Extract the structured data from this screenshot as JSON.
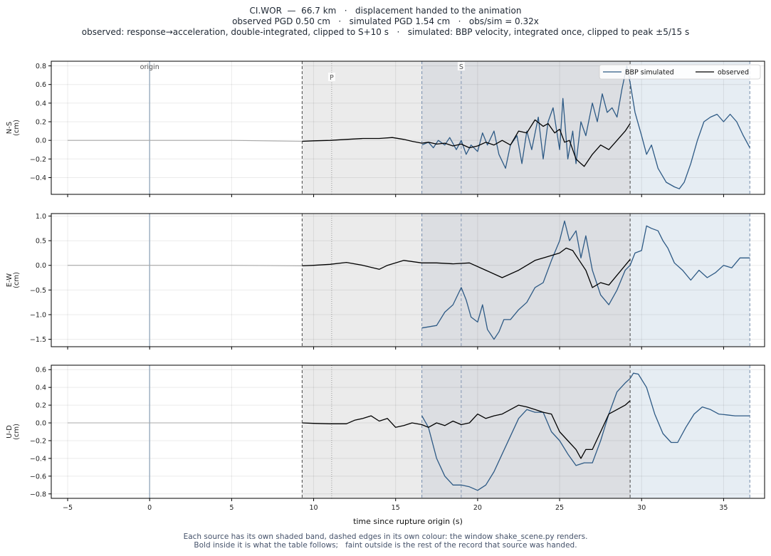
{
  "title_lines": [
    "CI.WOR  —  66.7 km   ·   displacement handed to the animation",
    "observed PGD 0.50 cm   ·   simulated PGD 1.54 cm   ·   obs/sim = 0.32x",
    "observed: response→acceleration, double-integrated, clipped to S+10 s   ·   simulated: BBP velocity, integrated once, clipped to peak ±5/15 s"
  ],
  "footnote_lines": [
    "Each source has its own shaded band, dashed edges in its own colour: the window shake_scene.py renders.",
    "Bold inside it is what the table follows;   faint outside is the rest of the record that source was handed."
  ],
  "colors": {
    "observed": "#000000",
    "simulated": "#2e5a85",
    "observed_faint": "#a8a8a8",
    "obs_band": "#ebebeb",
    "sim_band": "#e6edf3",
    "overlap_band": "#dcdee2",
    "obs_edge": "#555555",
    "sim_edge": "#7f95b2",
    "origin_line": "#9fb0c2",
    "p_line": "#999999",
    "s_line": "#8497b3"
  },
  "chart_data": {
    "type": "line",
    "xlabel": "time since rupture origin (s)",
    "xlim": [
      -6,
      37.5
    ],
    "xticks": [
      -5,
      0,
      5,
      10,
      15,
      20,
      25,
      30,
      35
    ],
    "grid": true,
    "legend": {
      "placement": "top-right",
      "entries": [
        "BBP simulated",
        "observed"
      ]
    },
    "markers": {
      "origin": 0,
      "P": 11.1,
      "S": 19.0,
      "origin_label": "origin",
      "p_label": "P",
      "s_label": "S"
    },
    "observed_window": [
      9.3,
      29.3
    ],
    "simulated_window": [
      16.6,
      36.6
    ],
    "panels": [
      {
        "ylabel": "N-S\n(cm)",
        "ylim": [
          -0.58,
          0.85
        ],
        "yticks": [
          -0.4,
          -0.2,
          0.0,
          0.2,
          0.4,
          0.6,
          0.8
        ],
        "observed_faint": [
          [
            -5,
            0.0
          ],
          [
            0,
            0.0
          ],
          [
            5,
            0.0
          ],
          [
            9.3,
            -0.01
          ]
        ],
        "observed": [
          [
            9.3,
            -0.01
          ],
          [
            10,
            -0.005
          ],
          [
            11,
            0.0
          ],
          [
            12,
            0.01
          ],
          [
            13,
            0.02
          ],
          [
            14,
            0.02
          ],
          [
            14.8,
            0.03
          ],
          [
            15.5,
            0.01
          ],
          [
            16,
            -0.01
          ],
          [
            16.6,
            -0.03
          ],
          [
            17,
            -0.02
          ],
          [
            17.5,
            -0.04
          ],
          [
            18,
            -0.03
          ],
          [
            18.5,
            -0.06
          ],
          [
            19,
            -0.04
          ],
          [
            19.5,
            -0.08
          ],
          [
            20,
            -0.06
          ],
          [
            20.5,
            -0.02
          ],
          [
            21,
            -0.05
          ],
          [
            21.5,
            0.0
          ],
          [
            22,
            -0.05
          ],
          [
            22.5,
            0.1
          ],
          [
            23,
            0.08
          ],
          [
            23.5,
            0.22
          ],
          [
            24,
            0.15
          ],
          [
            24.3,
            0.18
          ],
          [
            24.7,
            0.08
          ],
          [
            25,
            0.12
          ],
          [
            25.3,
            -0.02
          ],
          [
            25.6,
            0.0
          ],
          [
            26,
            -0.2
          ],
          [
            26.3,
            -0.25
          ],
          [
            26.5,
            -0.28
          ],
          [
            27,
            -0.15
          ],
          [
            27.5,
            -0.05
          ],
          [
            28,
            -0.1
          ],
          [
            28.5,
            0.0
          ],
          [
            29,
            0.1
          ],
          [
            29.3,
            0.18
          ]
        ],
        "simulated": [
          [
            16.6,
            -0.05
          ],
          [
            17,
            -0.02
          ],
          [
            17.3,
            -0.08
          ],
          [
            17.6,
            0.0
          ],
          [
            18,
            -0.05
          ],
          [
            18.3,
            0.03
          ],
          [
            18.7,
            -0.1
          ],
          [
            19,
            0.0
          ],
          [
            19.3,
            -0.15
          ],
          [
            19.6,
            -0.05
          ],
          [
            20,
            -0.12
          ],
          [
            20.3,
            0.08
          ],
          [
            20.6,
            -0.05
          ],
          [
            21,
            0.1
          ],
          [
            21.3,
            -0.15
          ],
          [
            21.7,
            -0.3
          ],
          [
            22,
            -0.05
          ],
          [
            22.4,
            0.05
          ],
          [
            22.7,
            -0.25
          ],
          [
            23,
            0.1
          ],
          [
            23.3,
            -0.1
          ],
          [
            23.7,
            0.25
          ],
          [
            24,
            -0.2
          ],
          [
            24.3,
            0.2
          ],
          [
            24.6,
            0.35
          ],
          [
            25,
            -0.1
          ],
          [
            25.2,
            0.45
          ],
          [
            25.5,
            -0.2
          ],
          [
            25.8,
            0.1
          ],
          [
            26,
            -0.25
          ],
          [
            26.3,
            0.2
          ],
          [
            26.6,
            0.05
          ],
          [
            27,
            0.4
          ],
          [
            27.3,
            0.2
          ],
          [
            27.6,
            0.5
          ],
          [
            27.9,
            0.3
          ],
          [
            28.2,
            0.35
          ],
          [
            28.5,
            0.25
          ],
          [
            28.8,
            0.55
          ],
          [
            29.1,
            0.8
          ],
          [
            29.3,
            0.62
          ],
          [
            29.6,
            0.3
          ],
          [
            30,
            0.05
          ],
          [
            30.3,
            -0.15
          ],
          [
            30.6,
            -0.05
          ],
          [
            31,
            -0.3
          ],
          [
            31.5,
            -0.45
          ],
          [
            32,
            -0.5
          ],
          [
            32.3,
            -0.52
          ],
          [
            32.6,
            -0.45
          ],
          [
            33,
            -0.25
          ],
          [
            33.4,
            0.0
          ],
          [
            33.8,
            0.2
          ],
          [
            34.2,
            0.25
          ],
          [
            34.6,
            0.28
          ],
          [
            35,
            0.2
          ],
          [
            35.4,
            0.28
          ],
          [
            35.8,
            0.2
          ],
          [
            36.2,
            0.05
          ],
          [
            36.6,
            -0.08
          ]
        ]
      },
      {
        "ylabel": "E-W\n(cm)",
        "ylim": [
          -1.65,
          1.05
        ],
        "yticks": [
          -1.5,
          -1.0,
          -0.5,
          0.0,
          0.5,
          1.0
        ],
        "observed_faint": [
          [
            -5,
            0.0
          ],
          [
            0,
            0.0
          ],
          [
            5,
            0.0
          ],
          [
            9.3,
            -0.01
          ]
        ],
        "observed": [
          [
            9.3,
            -0.01
          ],
          [
            10,
            0.0
          ],
          [
            11,
            0.02
          ],
          [
            12,
            0.06
          ],
          [
            13,
            0.0
          ],
          [
            14,
            -0.08
          ],
          [
            14.5,
            0.0
          ],
          [
            15.5,
            0.1
          ],
          [
            16.6,
            0.05
          ],
          [
            17.5,
            0.05
          ],
          [
            18.5,
            0.03
          ],
          [
            19.5,
            0.05
          ],
          [
            20.5,
            -0.1
          ],
          [
            21.5,
            -0.25
          ],
          [
            22.5,
            -0.1
          ],
          [
            23.5,
            0.1
          ],
          [
            24.5,
            0.2
          ],
          [
            25,
            0.25
          ],
          [
            25.4,
            0.35
          ],
          [
            25.8,
            0.3
          ],
          [
            26.2,
            0.1
          ],
          [
            26.6,
            -0.1
          ],
          [
            27,
            -0.45
          ],
          [
            27.5,
            -0.35
          ],
          [
            28,
            -0.4
          ],
          [
            28.5,
            -0.2
          ],
          [
            29,
            0.0
          ],
          [
            29.3,
            0.12
          ]
        ],
        "simulated": [
          [
            16.6,
            -1.27
          ],
          [
            17.5,
            -1.22
          ],
          [
            18,
            -0.95
          ],
          [
            18.5,
            -0.8
          ],
          [
            19,
            -0.45
          ],
          [
            19.3,
            -0.7
          ],
          [
            19.6,
            -1.05
          ],
          [
            20,
            -1.15
          ],
          [
            20.3,
            -0.8
          ],
          [
            20.6,
            -1.3
          ],
          [
            21,
            -1.5
          ],
          [
            21.3,
            -1.35
          ],
          [
            21.6,
            -1.1
          ],
          [
            22,
            -1.1
          ],
          [
            22.5,
            -0.9
          ],
          [
            23,
            -0.75
          ],
          [
            23.5,
            -0.45
          ],
          [
            24,
            -0.35
          ],
          [
            24.5,
            0.1
          ],
          [
            25,
            0.5
          ],
          [
            25.3,
            0.9
          ],
          [
            25.6,
            0.5
          ],
          [
            26,
            0.7
          ],
          [
            26.3,
            0.15
          ],
          [
            26.6,
            0.6
          ],
          [
            27,
            -0.1
          ],
          [
            27.5,
            -0.6
          ],
          [
            28,
            -0.8
          ],
          [
            28.5,
            -0.5
          ],
          [
            29,
            -0.1
          ],
          [
            29.3,
            0.0
          ],
          [
            29.6,
            0.25
          ],
          [
            30,
            0.3
          ],
          [
            30.3,
            0.8
          ],
          [
            30.6,
            0.75
          ],
          [
            31,
            0.7
          ],
          [
            31.3,
            0.5
          ],
          [
            31.6,
            0.35
          ],
          [
            32,
            0.05
          ],
          [
            32.5,
            -0.1
          ],
          [
            33,
            -0.3
          ],
          [
            33.5,
            -0.1
          ],
          [
            34,
            -0.25
          ],
          [
            34.5,
            -0.15
          ],
          [
            35,
            0.0
          ],
          [
            35.5,
            -0.05
          ],
          [
            36,
            0.15
          ],
          [
            36.6,
            0.15
          ]
        ]
      },
      {
        "ylabel": "U-D\n(cm)",
        "ylim": [
          -0.85,
          0.65
        ],
        "yticks": [
          -0.8,
          -0.6,
          -0.4,
          -0.2,
          0.0,
          0.2,
          0.4,
          0.6
        ],
        "observed_faint": [
          [
            -5,
            0.0
          ],
          [
            0,
            0.0
          ],
          [
            5,
            0.0
          ],
          [
            9.3,
            0.0
          ]
        ],
        "observed": [
          [
            9.3,
            0.0
          ],
          [
            10,
            -0.005
          ],
          [
            11,
            -0.01
          ],
          [
            12,
            -0.01
          ],
          [
            12.5,
            0.03
          ],
          [
            13,
            0.05
          ],
          [
            13.5,
            0.08
          ],
          [
            14,
            0.02
          ],
          [
            14.5,
            0.05
          ],
          [
            15,
            -0.05
          ],
          [
            15.5,
            -0.03
          ],
          [
            16,
            0.0
          ],
          [
            16.6,
            -0.02
          ],
          [
            17,
            -0.05
          ],
          [
            17.5,
            0.0
          ],
          [
            18,
            -0.03
          ],
          [
            18.5,
            0.02
          ],
          [
            19,
            -0.02
          ],
          [
            19.5,
            0.0
          ],
          [
            20,
            0.1
          ],
          [
            20.5,
            0.05
          ],
          [
            21,
            0.08
          ],
          [
            21.5,
            0.1
          ],
          [
            22,
            0.15
          ],
          [
            22.5,
            0.2
          ],
          [
            23,
            0.18
          ],
          [
            23.5,
            0.15
          ],
          [
            24,
            0.12
          ],
          [
            24.5,
            0.1
          ],
          [
            25,
            -0.1
          ],
          [
            25.5,
            -0.2
          ],
          [
            26,
            -0.3
          ],
          [
            26.3,
            -0.4
          ],
          [
            26.6,
            -0.3
          ],
          [
            27,
            -0.3
          ],
          [
            27.5,
            -0.1
          ],
          [
            28,
            0.1
          ],
          [
            28.5,
            0.15
          ],
          [
            29,
            0.2
          ],
          [
            29.3,
            0.25
          ]
        ],
        "simulated": [
          [
            16.6,
            0.08
          ],
          [
            17,
            -0.05
          ],
          [
            17.5,
            -0.4
          ],
          [
            18,
            -0.6
          ],
          [
            18.5,
            -0.7
          ],
          [
            19,
            -0.7
          ],
          [
            19.5,
            -0.72
          ],
          [
            20,
            -0.76
          ],
          [
            20.5,
            -0.7
          ],
          [
            21,
            -0.55
          ],
          [
            21.5,
            -0.35
          ],
          [
            22,
            -0.15
          ],
          [
            22.5,
            0.05
          ],
          [
            23,
            0.15
          ],
          [
            23.5,
            0.12
          ],
          [
            24,
            0.12
          ],
          [
            24.5,
            -0.1
          ],
          [
            25,
            -0.2
          ],
          [
            25.5,
            -0.35
          ],
          [
            26,
            -0.48
          ],
          [
            26.5,
            -0.45
          ],
          [
            27,
            -0.45
          ],
          [
            27.5,
            -0.2
          ],
          [
            28,
            0.1
          ],
          [
            28.5,
            0.35
          ],
          [
            29,
            0.45
          ],
          [
            29.3,
            0.5
          ],
          [
            29.5,
            0.56
          ],
          [
            29.8,
            0.55
          ],
          [
            30.3,
            0.4
          ],
          [
            30.8,
            0.1
          ],
          [
            31.3,
            -0.12
          ],
          [
            31.8,
            -0.22
          ],
          [
            32.2,
            -0.22
          ],
          [
            32.7,
            -0.05
          ],
          [
            33.2,
            0.1
          ],
          [
            33.7,
            0.18
          ],
          [
            34.2,
            0.15
          ],
          [
            34.7,
            0.1
          ],
          [
            35.2,
            0.09
          ],
          [
            35.7,
            0.08
          ],
          [
            36.6,
            0.08
          ]
        ]
      }
    ]
  }
}
